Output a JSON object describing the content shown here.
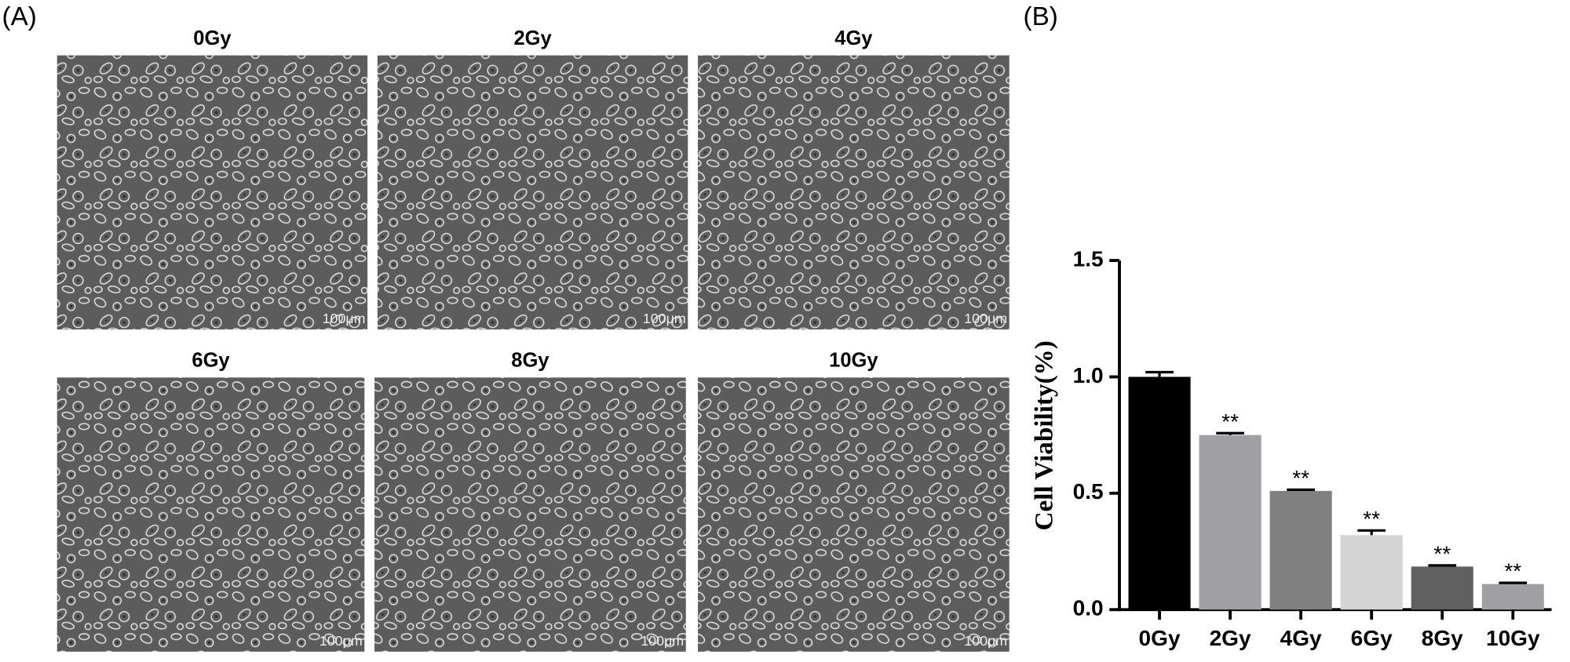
{
  "panel_a": {
    "label": "(A)",
    "images": [
      {
        "title": "0Gy",
        "scale_bar": "100μm"
      },
      {
        "title": "2Gy",
        "scale_bar": "100μm"
      },
      {
        "title": "4Gy",
        "scale_bar": "100μm"
      },
      {
        "title": "6Gy",
        "scale_bar": "100μm"
      },
      {
        "title": "8Gy",
        "scale_bar": "100μm"
      },
      {
        "title": "10Gy",
        "scale_bar": "100μm"
      }
    ]
  },
  "chart_data": {
    "type": "bar",
    "panel_label": "(B)",
    "y_label": "Cell Viability(%)",
    "categories": [
      "0Gy",
      "2Gy",
      "4Gy",
      "6Gy",
      "8Gy",
      "10Gy"
    ],
    "values": [
      1.0,
      0.75,
      0.51,
      0.32,
      0.185,
      0.11
    ],
    "errors": [
      0.02,
      0.008,
      0.005,
      0.02,
      0.005,
      0.005
    ],
    "colors": [
      "#000000",
      "#a0a0a4",
      "#808080",
      "#d4d4d4",
      "#606060",
      "#a0a0a4"
    ],
    "significance": [
      null,
      "**",
      "**",
      "**",
      "**",
      "**"
    ],
    "ylim": [
      0,
      1.5
    ],
    "yticks": [
      {
        "value": 0,
        "label": "0.0"
      },
      0.5,
      {
        "value": 1,
        "label": "1.0"
      },
      1.5
    ]
  }
}
